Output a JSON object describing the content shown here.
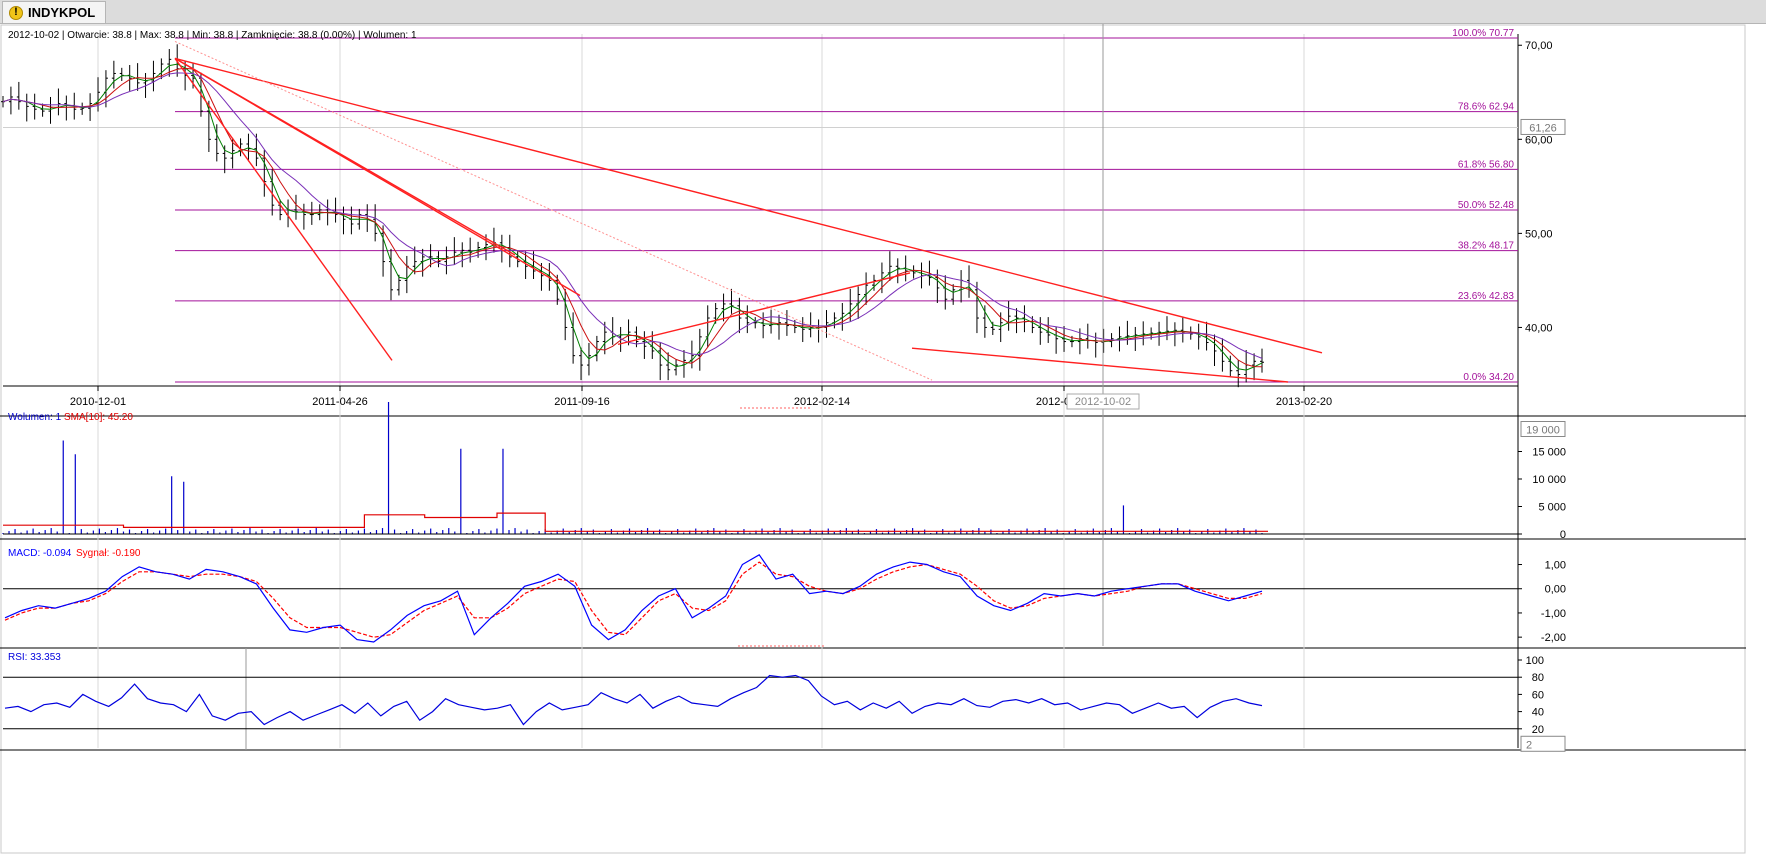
{
  "tab": {
    "label": "INDYKPOL",
    "icon": "warning-icon"
  },
  "colors": {
    "price": "#000000",
    "fib": "#a3129a",
    "trend": "#ff2020",
    "volume": "#0000cc",
    "sma": "#e00000",
    "macd": "#0000ff",
    "signal": "#ff0000",
    "rsi": "#0000dd",
    "ma_fast": "#008000",
    "ma_mid": "#cc1111",
    "ma_slow": "#7a30b8"
  },
  "chart_data": [
    {
      "type": "ohlc",
      "info": {
        "date": "2012-10-02",
        "open": "Otwarcie: 38.8",
        "high": "Max: 38.8",
        "low": "Min: 38.8",
        "close": "Zamknięcie: 38.8 (0.00%)",
        "volume": "Wolumen: 1"
      },
      "x_ticks": [
        "2010-12-01",
        "2011-04-26",
        "2011-09-16",
        "2012-02-14",
        "2012-07-09",
        "2013-02-20"
      ],
      "crosshair_date": "2012-10-02",
      "y_ticks": [
        "70,00",
        "60,00",
        "50,00",
        "40,00"
      ],
      "ylim": [
        34.2,
        70.77
      ],
      "current_price": "61,26",
      "fib_levels": [
        {
          "label": "100.0% 70.77",
          "value": 70.77
        },
        {
          "label": "78.6% 62.94",
          "value": 62.94
        },
        {
          "label": "61.8% 56.80",
          "value": 56.8
        },
        {
          "label": "50.0% 52.48",
          "value": 52.48
        },
        {
          "label": "38.2% 48.17",
          "value": 48.17
        },
        {
          "label": "23.6% 42.83",
          "value": 42.83
        },
        {
          "label": "0.0% 34.20",
          "value": 34.2
        }
      ],
      "close": [
        64,
        64.5,
        64,
        63.5,
        63.2,
        63,
        63.4,
        63.8,
        63.6,
        63.2,
        63.3,
        63.8,
        65,
        66.5,
        67,
        66.8,
        66.5,
        66,
        66.2,
        67,
        68,
        68.5,
        67.5,
        66.8,
        66.5,
        63,
        60,
        58.5,
        58,
        58.8,
        59.5,
        59,
        58,
        55.5,
        53,
        52,
        52.5,
        52.3,
        52,
        52,
        52.5,
        52.2,
        52,
        51.5,
        51,
        52,
        51.5,
        50,
        47,
        44,
        45,
        46.5,
        47,
        47.5,
        47.5,
        47,
        47.5,
        48,
        48.2,
        48,
        48.5,
        48.8,
        49,
        48.5,
        47.5,
        47,
        46.5,
        46,
        45.5,
        45,
        43,
        40,
        37,
        36,
        37,
        38.5,
        39.5,
        39,
        39.2,
        39.5,
        38.5,
        38,
        37.5,
        36,
        35.5,
        36,
        36.5,
        37,
        39,
        41,
        42,
        42.5,
        42.3,
        41,
        40.5,
        40.5,
        40.2,
        40.3,
        40.5,
        40.2,
        40,
        39.8,
        40,
        40,
        40.5,
        41,
        41.5,
        42.5,
        43.5,
        44.5,
        45,
        45.8,
        46.5,
        46.3,
        46,
        45.8,
        45.5,
        45.3,
        44.2,
        43,
        44,
        45,
        44,
        41,
        40,
        39.8,
        40.5,
        41.2,
        41,
        40.6,
        40,
        39.5,
        39.2,
        38.8,
        38.5,
        38.5,
        38.8,
        38.6,
        38.4,
        38.5,
        38.8,
        39,
        39.1,
        39.2,
        39.3,
        39.4,
        39.5,
        39.6,
        39.7,
        39.5,
        39.3,
        39,
        38.4,
        37.5,
        36.4,
        35.4,
        35,
        36,
        36.4,
        36.3
      ],
      "moving_averages": {
        "fast": "ma_fast",
        "mid": "ma_mid",
        "slow": "ma_slow"
      }
    },
    {
      "type": "bar",
      "legend": {
        "name": "Wolumen: 1",
        "sma": "SMA[10]: 45.20"
      },
      "y_ticks": [
        "15 000",
        "10 000",
        "5 000",
        "0"
      ],
      "current_value": "19 000",
      "ylim": [
        0,
        20000
      ],
      "spikes": [
        {
          "i": 10,
          "v": 17000
        },
        {
          "i": 12,
          "v": 14500
        },
        {
          "i": 28,
          "v": 10500
        },
        {
          "i": 30,
          "v": 9500
        },
        {
          "i": 64,
          "v": 24000
        },
        {
          "i": 76,
          "v": 15500
        },
        {
          "i": 83,
          "v": 15500
        },
        {
          "i": 186,
          "v": 5200
        }
      ],
      "base_volume": 900,
      "sma_level": [
        {
          "from": 0,
          "to": 20,
          "v": 1600
        },
        {
          "from": 20,
          "to": 60,
          "v": 1200
        },
        {
          "from": 60,
          "to": 70,
          "v": 3500
        },
        {
          "from": 70,
          "to": 82,
          "v": 3000
        },
        {
          "from": 82,
          "to": 90,
          "v": 3800
        },
        {
          "from": 90,
          "to": 210,
          "v": 500
        }
      ]
    },
    {
      "type": "line",
      "legend": {
        "macd": "MACD: -0.094",
        "signal": "Sygnał: -0.190"
      },
      "y_ticks": [
        "1,00",
        "0,00",
        "-1,00",
        "-2,00"
      ],
      "ylim": [
        -2.2,
        1.6
      ],
      "macd": [
        -1.2,
        -0.9,
        -0.7,
        -0.8,
        -0.6,
        -0.4,
        -0.1,
        0.5,
        0.9,
        0.7,
        0.6,
        0.4,
        0.8,
        0.7,
        0.5,
        0.2,
        -0.8,
        -1.7,
        -1.8,
        -1.6,
        -1.5,
        -2.1,
        -2.2,
        -1.7,
        -1.1,
        -0.7,
        -0.5,
        -0.1,
        -1.9,
        -1.2,
        -0.6,
        0.1,
        0.3,
        0.6,
        0.1,
        -1.5,
        -2.1,
        -1.7,
        -0.9,
        -0.3,
        0.0,
        -1.2,
        -0.8,
        -0.3,
        1.0,
        1.4,
        0.4,
        0.6,
        -0.2,
        -0.1,
        -0.2,
        0.1,
        0.6,
        0.9,
        1.1,
        1.0,
        0.7,
        0.5,
        -0.3,
        -0.7,
        -0.9,
        -0.6,
        -0.2,
        -0.3,
        -0.2,
        -0.3,
        -0.1,
        0.0,
        0.1,
        0.2,
        0.2,
        -0.1,
        -0.3,
        -0.5,
        -0.3,
        -0.1
      ],
      "signal": [
        -1.3,
        -1.0,
        -0.8,
        -0.8,
        -0.6,
        -0.5,
        -0.2,
        0.3,
        0.7,
        0.7,
        0.6,
        0.5,
        0.6,
        0.6,
        0.5,
        0.3,
        -0.4,
        -1.2,
        -1.6,
        -1.6,
        -1.6,
        -1.8,
        -2.0,
        -1.9,
        -1.4,
        -0.9,
        -0.6,
        -0.3,
        -1.2,
        -1.2,
        -0.8,
        -0.2,
        0.1,
        0.4,
        0.3,
        -0.9,
        -1.8,
        -1.9,
        -1.2,
        -0.5,
        -0.2,
        -0.8,
        -0.9,
        -0.5,
        0.6,
        1.1,
        0.6,
        0.5,
        0.1,
        -0.1,
        -0.2,
        0.0,
        0.4,
        0.7,
        0.9,
        1.0,
        0.8,
        0.6,
        0.1,
        -0.5,
        -0.8,
        -0.7,
        -0.4,
        -0.3,
        -0.2,
        -0.3,
        -0.2,
        -0.1,
        0.1,
        0.2,
        0.2,
        0.0,
        -0.2,
        -0.4,
        -0.4,
        -0.2
      ]
    },
    {
      "type": "line",
      "legend": {
        "rsi": "RSI: 33.353"
      },
      "y_ticks": [
        "100",
        "80",
        "60",
        "40",
        "20"
      ],
      "current_value": "2",
      "ylim": [
        0,
        100
      ],
      "bands": [
        20,
        80
      ],
      "rsi": [
        44,
        46,
        40,
        48,
        50,
        45,
        60,
        52,
        46,
        56,
        72,
        55,
        50,
        48,
        40,
        60,
        35,
        30,
        38,
        40,
        25,
        33,
        40,
        30,
        36,
        42,
        48,
        38,
        50,
        35,
        46,
        52,
        30,
        40,
        55,
        48,
        45,
        42,
        44,
        48,
        25,
        40,
        50,
        42,
        45,
        48,
        62,
        55,
        50,
        60,
        44,
        52,
        58,
        50,
        48,
        46,
        55,
        62,
        68,
        82,
        80,
        82,
        76,
        58,
        48,
        52,
        42,
        50,
        44,
        52,
        38,
        46,
        50,
        48,
        55,
        47,
        45,
        52,
        54,
        50,
        55,
        48,
        50,
        42,
        46,
        50,
        48,
        38,
        44,
        50,
        44,
        46,
        33,
        45,
        52,
        55,
        50,
        47
      ]
    }
  ]
}
